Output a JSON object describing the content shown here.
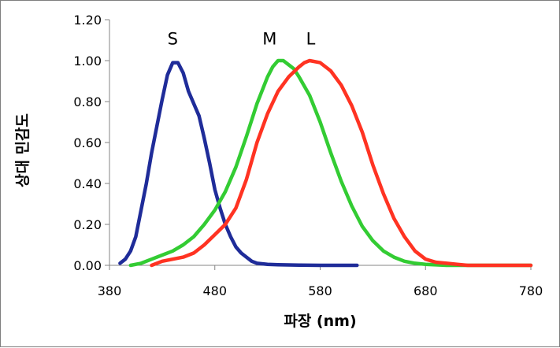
{
  "chart_data": {
    "type": "line",
    "title": "",
    "xlabel": "파장 (nm)",
    "ylabel": "상대 민감도",
    "xlim": [
      380,
      780
    ],
    "ylim": [
      0,
      1.2
    ],
    "x_ticks": [
      380,
      480,
      580,
      680,
      780
    ],
    "x_tick_labels": [
      "380",
      "480",
      "580",
      "680",
      "780"
    ],
    "y_ticks": [
      0,
      0.2,
      0.4,
      0.6,
      0.8,
      1.0,
      1.2
    ],
    "y_tick_labels": [
      "0.00",
      "0.20",
      "0.40",
      "0.60",
      "0.80",
      "1.00",
      "1.20"
    ],
    "grid": false,
    "legend": "none",
    "series": [
      {
        "name": "S",
        "label_at": [
          440,
          1.11
        ],
        "color": "#1f2c99",
        "x": [
          390,
          395,
          400,
          405,
          410,
          415,
          420,
          425,
          430,
          435,
          440,
          445,
          450,
          455,
          460,
          465,
          470,
          475,
          480,
          485,
          490,
          495,
          500,
          505,
          510,
          515,
          520,
          530,
          540,
          560,
          580,
          600,
          615
        ],
        "y": [
          0.01,
          0.03,
          0.07,
          0.14,
          0.27,
          0.4,
          0.55,
          0.68,
          0.81,
          0.93,
          0.99,
          0.99,
          0.94,
          0.85,
          0.79,
          0.73,
          0.62,
          0.5,
          0.37,
          0.28,
          0.2,
          0.14,
          0.09,
          0.06,
          0.04,
          0.02,
          0.01,
          0.005,
          0.003,
          0.001,
          0.0,
          0.0,
          0.0
        ]
      },
      {
        "name": "M",
        "label_at": [
          532,
          1.11
        ],
        "color": "#33cc33",
        "x": [
          400,
          410,
          420,
          430,
          440,
          450,
          460,
          470,
          480,
          490,
          500,
          510,
          520,
          530,
          535,
          540,
          545,
          550,
          555,
          560,
          570,
          580,
          590,
          600,
          610,
          620,
          630,
          640,
          650,
          660,
          670,
          680,
          700,
          720,
          750,
          780
        ],
        "y": [
          0.0,
          0.01,
          0.03,
          0.05,
          0.07,
          0.1,
          0.14,
          0.2,
          0.27,
          0.36,
          0.48,
          0.63,
          0.79,
          0.92,
          0.97,
          1.0,
          1.0,
          0.98,
          0.96,
          0.92,
          0.83,
          0.7,
          0.55,
          0.41,
          0.29,
          0.19,
          0.12,
          0.07,
          0.04,
          0.02,
          0.01,
          0.005,
          0.0,
          0.0,
          0.0,
          0.0
        ]
      },
      {
        "name": "L",
        "label_at": [
          571,
          1.11
        ],
        "color": "#ff3322",
        "x": [
          420,
          430,
          440,
          450,
          460,
          470,
          480,
          490,
          500,
          510,
          520,
          530,
          540,
          550,
          560,
          565,
          570,
          580,
          590,
          600,
          610,
          620,
          630,
          640,
          650,
          660,
          670,
          680,
          690,
          700,
          710,
          720,
          740,
          780
        ],
        "y": [
          0.0,
          0.02,
          0.03,
          0.04,
          0.06,
          0.1,
          0.15,
          0.2,
          0.28,
          0.42,
          0.6,
          0.74,
          0.85,
          0.92,
          0.97,
          0.99,
          1.0,
          0.99,
          0.95,
          0.88,
          0.78,
          0.65,
          0.49,
          0.35,
          0.23,
          0.14,
          0.07,
          0.03,
          0.015,
          0.01,
          0.005,
          0.0,
          0.0,
          0.0
        ]
      }
    ]
  }
}
